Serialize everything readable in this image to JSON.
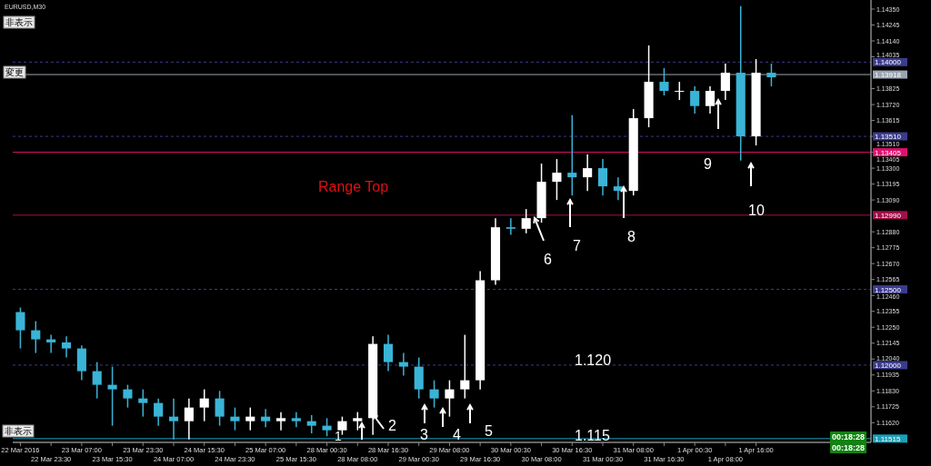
{
  "chart_data": {
    "type": "candlestick",
    "categories": [
      "22 Mar 2016",
      null,
      "22 Mar 23:30",
      null,
      "23 Mar 07:00",
      null,
      "23 Mar 15:30",
      null,
      "23 Mar 23:30",
      null,
      "24 Mar 07:00",
      null,
      "24 Mar 15:30",
      null,
      "24 Mar 23:30",
      null,
      "25 Mar 07:00",
      null,
      "25 Mar 15:30",
      null,
      "28 Mar 00:30",
      null,
      "28 Mar 08:00",
      null,
      "28 Mar 16:30",
      null,
      "29 Mar 00:30",
      null,
      "29 Mar 08:00",
      null,
      "29 Mar 16:30",
      null,
      "30 Mar 00:30",
      null,
      "30 Mar 08:00",
      null,
      "30 Mar 16:30",
      null,
      "31 Mar 00:30",
      null,
      "31 Mar 08:00",
      null,
      "31 Mar 16:30",
      null,
      "1 Apr 00:30",
      null,
      "1 Apr 08:00",
      null,
      "1 Apr 16:00",
      null,
      null,
      null,
      null,
      null,
      null,
      null
    ],
    "ohlc": [
      [
        1.1235,
        1.1238,
        1.1211,
        1.1223
      ],
      [
        1.1223,
        1.1229,
        1.1208,
        1.1217
      ],
      [
        1.1217,
        1.122,
        1.1208,
        1.1215
      ],
      [
        1.1215,
        1.1219,
        1.1205,
        1.1211
      ],
      [
        1.1211,
        1.1213,
        1.119,
        1.1196
      ],
      [
        1.1196,
        1.1202,
        1.1178,
        1.1187
      ],
      [
        1.1187,
        1.1199,
        1.116,
        1.1184
      ],
      [
        1.1184,
        1.1187,
        1.1172,
        1.1178
      ],
      [
        1.1178,
        1.1184,
        1.1166,
        1.1175
      ],
      [
        1.1175,
        1.1178,
        1.116,
        1.1166
      ],
      [
        1.1166,
        1.1178,
        1.1151,
        1.1163
      ],
      [
        1.1163,
        1.1178,
        1.1151,
        1.1172
      ],
      [
        1.1172,
        1.1184,
        1.1163,
        1.1178
      ],
      [
        1.1178,
        1.1183,
        1.116,
        1.1166
      ],
      [
        1.1166,
        1.1172,
        1.1157,
        1.1163
      ],
      [
        1.1163,
        1.1172,
        1.1157,
        1.1166
      ],
      [
        1.1166,
        1.1171,
        1.1159,
        1.1163
      ],
      [
        1.1163,
        1.1169,
        1.1157,
        1.1165
      ],
      [
        1.1165,
        1.1169,
        1.1159,
        1.1163
      ],
      [
        1.1163,
        1.1167,
        1.1155,
        1.116
      ],
      [
        1.116,
        1.1165,
        1.1153,
        1.1157
      ],
      [
        1.1157,
        1.1166,
        1.1154,
        1.1163
      ],
      [
        1.1163,
        1.1169,
        1.1157,
        1.1165
      ],
      [
        1.1165,
        1.1219,
        1.1154,
        1.1214
      ],
      [
        1.1214,
        1.122,
        1.1196,
        1.1202
      ],
      [
        1.1202,
        1.1208,
        1.1193,
        1.1199
      ],
      [
        1.1199,
        1.1205,
        1.1178,
        1.1184
      ],
      [
        1.1184,
        1.119,
        1.1172,
        1.1178
      ],
      [
        1.1178,
        1.119,
        1.1166,
        1.1184
      ],
      [
        1.1184,
        1.122,
        1.1178,
        1.119
      ],
      [
        1.119,
        1.1262,
        1.1184,
        1.1256
      ],
      [
        1.1256,
        1.1297,
        1.1253,
        1.1291
      ],
      [
        1.1291,
        1.1297,
        1.1286,
        1.129
      ],
      [
        1.129,
        1.1303,
        1.1287,
        1.1297
      ],
      [
        1.1297,
        1.1333,
        1.1294,
        1.1321
      ],
      [
        1.1321,
        1.1336,
        1.1309,
        1.1327
      ],
      [
        1.1327,
        1.1365,
        1.1312,
        1.1324
      ],
      [
        1.1324,
        1.1339,
        1.1315,
        1.133
      ],
      [
        1.133,
        1.1336,
        1.1312,
        1.1318
      ],
      [
        1.1318,
        1.1324,
        1.1309,
        1.1315
      ],
      [
        1.1315,
        1.1369,
        1.1312,
        1.1363
      ],
      [
        1.1363,
        1.1411,
        1.1357,
        1.1387
      ],
      [
        1.1387,
        1.1396,
        1.1378,
        1.1381
      ],
      [
        1.1381,
        1.1387,
        1.1375,
        1.1381
      ],
      [
        1.1381,
        1.1384,
        1.1366,
        1.1371
      ],
      [
        1.1371,
        1.1384,
        1.1366,
        1.1381
      ],
      [
        1.1381,
        1.1399,
        1.1375,
        1.1393
      ],
      [
        1.1393,
        1.1437,
        1.1335,
        1.1351
      ],
      [
        1.1351,
        1.1402,
        1.1345,
        1.1393
      ],
      [
        1.1393,
        1.1399,
        1.1384,
        1.139
      ],
      null,
      null,
      null,
      null,
      null,
      null
    ],
    "colors": [
      "#3ab4d6",
      "#3ab4d6",
      "#3ab4d6",
      "#3ab4d6",
      "#3ab4d6",
      "#3ab4d6",
      "#3ab4d6",
      "#3ab4d6",
      "#3ab4d6",
      "#3ab4d6",
      "#3ab4d6",
      "#ffffff",
      "#ffffff",
      "#3ab4d6",
      "#3ab4d6",
      "#ffffff",
      "#3ab4d6",
      "#ffffff",
      "#3ab4d6",
      "#3ab4d6",
      "#3ab4d6",
      "#ffffff",
      "#ffffff",
      "#ffffff",
      "#3ab4d6",
      "#3ab4d6",
      "#3ab4d6",
      "#3ab4d6",
      "#ffffff",
      "#ffffff",
      "#ffffff",
      "#ffffff",
      "#3ab4d6",
      "#ffffff",
      "#ffffff",
      "#ffffff",
      "#3ab4d6",
      "#ffffff",
      "#3ab4d6",
      "#3ab4d6",
      "#ffffff",
      "#ffffff",
      "#3ab4d6",
      "#ffffff",
      "#3ab4d6",
      "#ffffff",
      "#ffffff",
      "#3ab4d6",
      "#ffffff",
      "#3ab4d6",
      null,
      null,
      null,
      null,
      null,
      null
    ],
    "ylim": [
      1.1149,
      1.1441
    ],
    "yticks": [
      {
        "value": 1.1162,
        "label": "1.11620"
      },
      {
        "value": 1.11725,
        "label": "1.11725"
      },
      {
        "value": 1.1183,
        "label": "1.11830"
      },
      {
        "value": 1.11935,
        "label": "1.11935"
      },
      {
        "value": 1.1204,
        "label": "1.12040"
      },
      {
        "value": 1.12145,
        "label": "1.12145"
      },
      {
        "value": 1.1225,
        "label": "1.12250"
      },
      {
        "value": 1.12355,
        "label": "1.12355"
      },
      {
        "value": 1.1246,
        "label": "1.12460"
      },
      {
        "value": 1.12565,
        "label": "1.12565"
      },
      {
        "value": 1.1267,
        "label": "1.12670"
      },
      {
        "value": 1.12775,
        "label": "1.12775"
      },
      {
        "value": 1.1288,
        "label": "1.12880"
      },
      {
        "value": 1.1309,
        "label": "1.13090"
      },
      {
        "value": 1.13195,
        "label": "1.13195"
      },
      {
        "value": 1.133,
        "label": "1.13300"
      },
      {
        "value": 1.13405,
        "label": "1.13405"
      },
      {
        "value": 1.1351,
        "label": "1.13510"
      },
      {
        "value": 1.13615,
        "label": "1.13615"
      },
      {
        "value": 1.1372,
        "label": "1.13720"
      },
      {
        "value": 1.13825,
        "label": "1.13825"
      },
      {
        "value": 1.14035,
        "label": "1.14035"
      },
      {
        "value": 1.1414,
        "label": "1.14140"
      },
      {
        "value": 1.14245,
        "label": "1.14245"
      },
      {
        "value": 1.1435,
        "label": "1.14350"
      }
    ],
    "ref_lines": [
      {
        "axis": "y",
        "value": 1.14,
        "label": "1.14000",
        "color": "#3c3c8c",
        "line_style": "dashed"
      },
      {
        "axis": "y",
        "value": 1.13918,
        "label": "1.13918",
        "color": "#9aa4b0",
        "line_style": "solid"
      },
      {
        "axis": "y",
        "value": 1.1351,
        "label": "1.13510",
        "color": "#3c3c8c",
        "line_style": "dashed"
      },
      {
        "axis": "y",
        "value": 1.13405,
        "label": "1.13405",
        "color": "#e0106e",
        "line_style": "solid"
      },
      {
        "axis": "y",
        "value": 1.1299,
        "label": "1.12990",
        "color": "#a0104a",
        "line_style": "solid"
      },
      {
        "axis": "y",
        "value": 1.125,
        "label": "1.12500",
        "color": "#3c3c8c",
        "line_style": "dashed"
      },
      {
        "axis": "y",
        "value": 1.12,
        "label": "1.12000",
        "color": "#3c3c8c",
        "line_style": "dashed"
      },
      {
        "axis": "y",
        "value": 1.11515,
        "label": "1.11515",
        "color": "#1aa0b8",
        "line_style": "solid"
      }
    ],
    "annotations": [
      "EURUSD,M30",
      "非表示",
      "変更",
      "非表示",
      "Range Top",
      "1",
      "2",
      "3",
      "4",
      "5",
      "6",
      "7",
      "8",
      "9",
      "10",
      "1.120",
      "1.115",
      "00:18:28",
      "00:18:28"
    ],
    "grid": false
  }
}
